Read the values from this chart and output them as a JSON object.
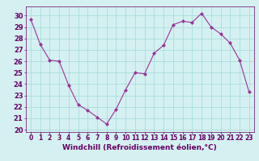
{
  "x": [
    0,
    1,
    2,
    3,
    4,
    5,
    6,
    7,
    8,
    9,
    10,
    11,
    12,
    13,
    14,
    15,
    16,
    17,
    18,
    19,
    20,
    21,
    22,
    23
  ],
  "y": [
    29.7,
    27.5,
    26.1,
    26.0,
    23.9,
    22.2,
    21.7,
    21.1,
    20.5,
    21.8,
    23.5,
    25.0,
    24.9,
    26.7,
    27.4,
    29.2,
    29.5,
    29.4,
    30.2,
    29.0,
    28.4,
    27.6,
    26.1,
    23.3
  ],
  "line_color": "#993399",
  "marker_color": "#993399",
  "bg_color": "#d4f0f0",
  "grid_color": "#aadddd",
  "ylabel_ticks": [
    20,
    21,
    22,
    23,
    24,
    25,
    26,
    27,
    28,
    29,
    30
  ],
  "xlabel": "Windchill (Refroidissement éolien,°C)",
  "ylim": [
    19.8,
    30.8
  ],
  "xlim": [
    -0.5,
    23.5
  ],
  "xlabel_color": "#660066",
  "tick_color": "#660066",
  "xlabel_fontsize": 6.5,
  "ytick_fontsize": 6.0,
  "xtick_fontsize": 5.5
}
